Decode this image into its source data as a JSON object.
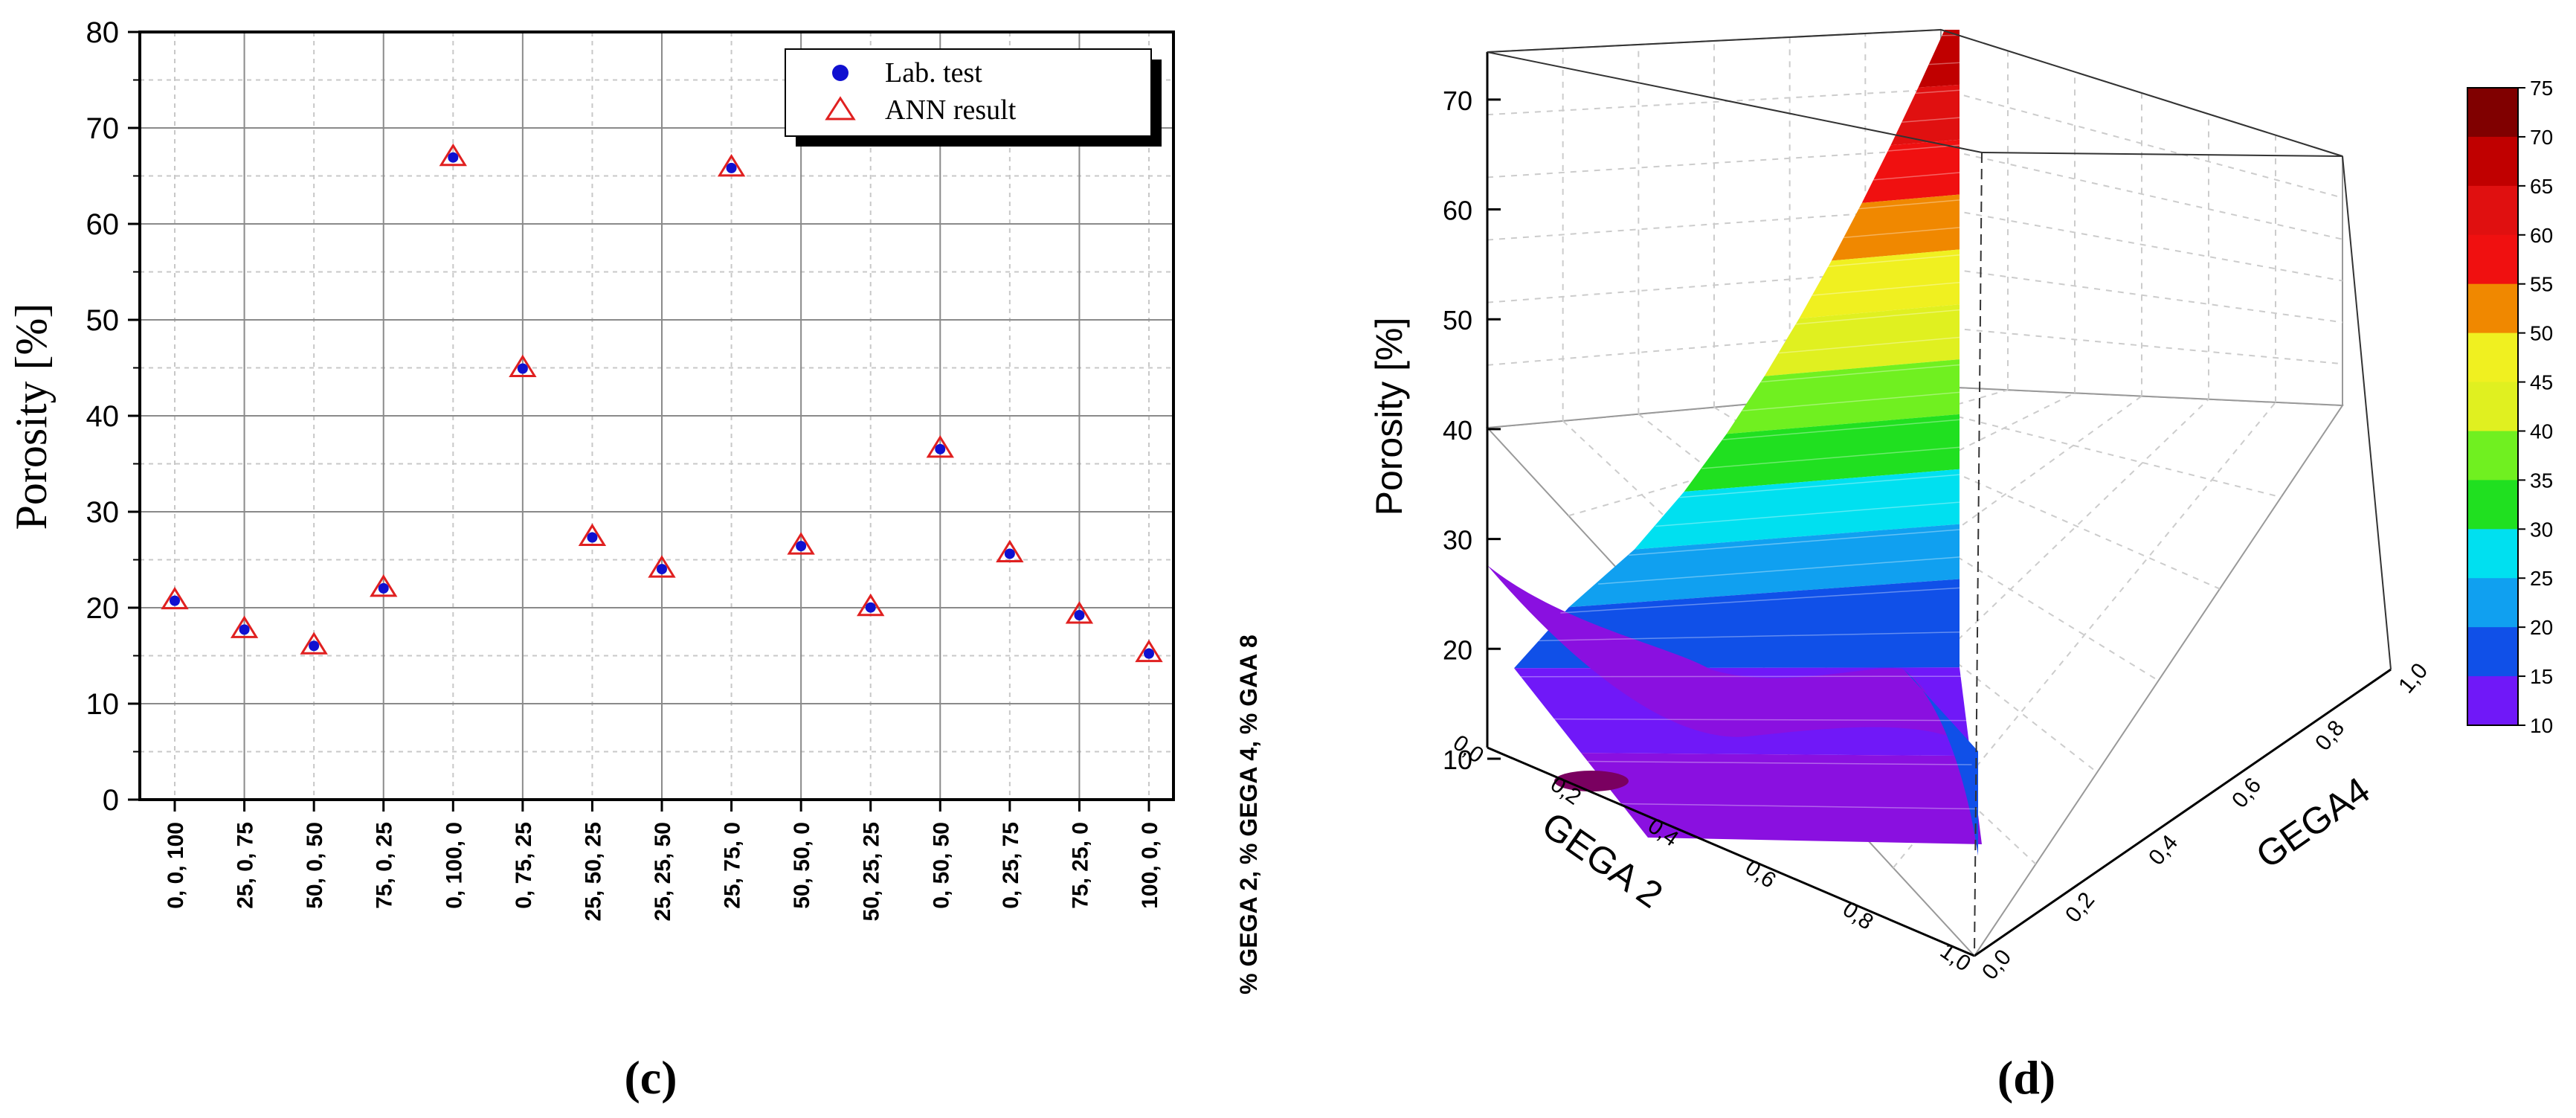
{
  "chart_data": [
    {
      "type": "scatter",
      "panel_label": "(c)",
      "ylabel": "Porosity [%]",
      "xlabel": "% GEGA 2, % GEGA 4, % GAA 8",
      "ylim": [
        0,
        80
      ],
      "yticks": [
        0,
        10,
        20,
        30,
        40,
        50,
        60,
        70,
        80
      ],
      "categories": [
        "0, 0, 100",
        "25, 0, 75",
        "50, 0, 50",
        "75, 0, 25",
        "0, 100, 0",
        "0, 75, 25",
        "25, 50, 25",
        "25, 25, 50",
        "25, 75, 0",
        "50, 50, 0",
        "50, 25, 25",
        "0, 50, 50",
        "0, 25, 75",
        "75, 25, 0",
        "100, 0, 0"
      ],
      "series": [
        {
          "name": "Lab. test",
          "marker": "filled-circle",
          "color": "#1010d0",
          "values": [
            20.8,
            17.8,
            16.1,
            22.1,
            67.0,
            45.0,
            27.4,
            24.1,
            65.9,
            26.5,
            20.1,
            36.6,
            25.7,
            19.3,
            15.3
          ]
        },
        {
          "name": "ANN result",
          "marker": "open-triangle",
          "color": "#e02020",
          "values": [
            20.8,
            17.8,
            16.1,
            22.1,
            67.0,
            45.0,
            27.4,
            24.1,
            65.9,
            26.5,
            20.1,
            36.6,
            25.7,
            19.3,
            15.3
          ]
        }
      ],
      "legend": "top-right",
      "grid": true
    },
    {
      "type": "surface3d",
      "panel_label": "(d)",
      "zlabel": "Porosity [%]",
      "xlabel": "GEGA 2",
      "ylabel": "GEGA4",
      "xticks": [
        "0,0",
        "0,2",
        "0,4",
        "0,6",
        "0,8",
        "1,0"
      ],
      "yticks": [
        "0,0",
        "0,2",
        "0,4",
        "0,6",
        "0,8",
        "1,0"
      ],
      "zticks": [
        10,
        20,
        30,
        40,
        50,
        60,
        70
      ],
      "colorbar": {
        "ticks": [
          10,
          15,
          20,
          25,
          30,
          35,
          40,
          45,
          50,
          55,
          60,
          65,
          70,
          75
        ],
        "colors": [
          "#7a0060",
          "#8a10e0",
          "#7018f8",
          "#1050e8",
          "#10a0f0",
          "#00e0f0",
          "#20e020",
          "#70f020",
          "#e0f020",
          "#f0f020",
          "#f08800",
          "#f01010",
          "#e01010",
          "#c00000",
          "#800000"
        ]
      }
    }
  ]
}
